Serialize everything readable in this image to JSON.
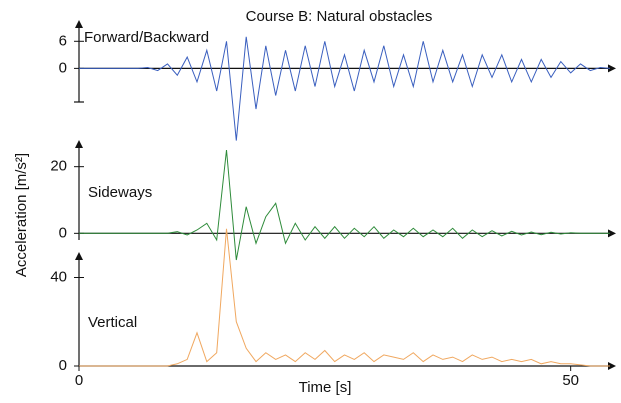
{
  "chart_data": {
    "type": "line",
    "title": "Course B: Natural obstacles",
    "xlabel": "Time [s]",
    "ylabel": "Acceleration [m/s²]",
    "xlim": [
      0,
      54
    ],
    "xticks": [
      0,
      50
    ],
    "x": [
      0,
      1,
      2,
      3,
      4,
      5,
      6,
      7,
      8,
      9,
      10,
      11,
      12,
      13,
      14,
      15,
      16,
      17,
      18,
      19,
      20,
      21,
      22,
      23,
      24,
      25,
      26,
      27,
      28,
      29,
      30,
      31,
      32,
      33,
      34,
      35,
      36,
      37,
      38,
      39,
      40,
      41,
      42,
      43,
      44,
      45,
      46,
      47,
      48,
      49,
      50,
      51,
      52,
      53,
      54
    ],
    "series": [
      {
        "name": "Forward/Backward",
        "color": "#3a5fbf",
        "ylim": [
          -7,
          8.5
        ],
        "yticks": [
          6,
          0
        ],
        "values": [
          0,
          0,
          0,
          0,
          0,
          0,
          0,
          0.2,
          -0.5,
          1,
          -1.5,
          2.5,
          -3,
          4,
          -5,
          6,
          -16,
          7,
          -9,
          5,
          -6,
          4,
          -5,
          5,
          -4,
          6,
          -4,
          3,
          -5,
          4,
          -3,
          5,
          -4,
          3,
          -4,
          6,
          -3,
          4,
          -3,
          3,
          -4,
          3,
          -2,
          3,
          -3,
          2,
          -3,
          2,
          -2,
          1.5,
          -1,
          1,
          -0.5,
          0.2,
          0
        ]
      },
      {
        "name": "Sideways",
        "color": "#2e8b3a",
        "ylim": [
          -2,
          25
        ],
        "yticks": [
          20,
          0
        ],
        "values": [
          0,
          0,
          0,
          0,
          0,
          0,
          0,
          0,
          0,
          0,
          0.5,
          -0.5,
          1,
          3,
          -2,
          25,
          -8,
          8,
          -3,
          5,
          9,
          -3,
          3,
          -2,
          2,
          -1.5,
          2,
          -1.5,
          1.5,
          -1,
          2,
          -1.5,
          1,
          -1,
          1.5,
          -1,
          1,
          -1,
          1.5,
          -1.5,
          1,
          -1,
          0.8,
          -0.8,
          0.6,
          -0.5,
          0.4,
          -0.4,
          0.3,
          -0.2,
          0.2,
          0,
          0,
          0,
          0
        ]
      },
      {
        "name": "Vertical",
        "color": "#f0a860",
        "ylim": [
          0,
          47
        ],
        "yticks": [
          40,
          0
        ],
        "values": [
          0,
          0,
          0,
          0,
          0,
          0,
          0,
          0,
          0,
          0,
          1,
          3,
          15,
          2,
          6,
          62,
          20,
          8,
          2,
          6,
          3,
          5,
          2,
          6,
          3,
          7,
          2,
          5,
          3,
          6,
          2,
          5,
          4,
          3,
          6,
          2,
          5,
          3,
          4,
          2,
          5,
          3,
          4,
          2,
          3,
          2,
          3,
          1,
          2,
          1,
          1,
          0.5,
          0,
          0,
          0
        ]
      }
    ]
  }
}
